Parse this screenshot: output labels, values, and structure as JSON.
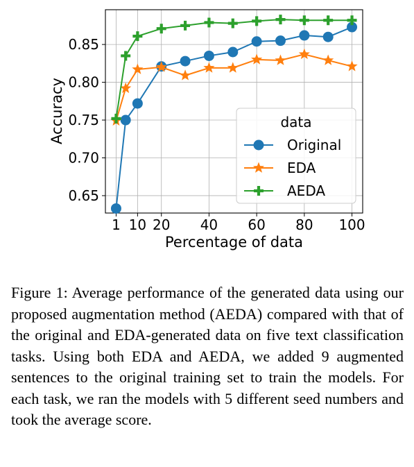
{
  "chart_data": {
    "type": "line",
    "title": "",
    "xlabel": "Percentage of data",
    "ylabel": "Accuracy",
    "xlim": [
      -3.5,
      104.5
    ],
    "ylim": [
      0.627,
      0.896
    ],
    "xticks": [
      1,
      10,
      20,
      40,
      60,
      80,
      100
    ],
    "xtick_labels": [
      "1",
      "10",
      "20",
      "40",
      "60",
      "80",
      "100"
    ],
    "yticks": [
      0.65,
      0.7,
      0.75,
      0.8,
      0.85
    ],
    "ytick_labels": [
      "0.65",
      "0.70",
      "0.75",
      "0.80",
      "0.85"
    ],
    "grid": true,
    "legend": {
      "title": "data",
      "position": "center-right"
    },
    "x": [
      1,
      5,
      10,
      20,
      30,
      40,
      50,
      60,
      70,
      80,
      90,
      100
    ],
    "series": [
      {
        "name": "Original",
        "color": "#1f77b4",
        "marker": "circle",
        "values": [
          0.633,
          0.75,
          0.772,
          0.821,
          0.828,
          0.835,
          0.84,
          0.854,
          0.855,
          0.862,
          0.86,
          0.873
        ]
      },
      {
        "name": "EDA",
        "color": "#ff7f0e",
        "marker": "star",
        "values": [
          0.749,
          0.792,
          0.817,
          0.82,
          0.809,
          0.819,
          0.819,
          0.83,
          0.829,
          0.837,
          0.829,
          0.821
        ]
      },
      {
        "name": "AEDA",
        "color": "#2ca02c",
        "marker": "plus",
        "values": [
          0.752,
          0.835,
          0.861,
          0.871,
          0.875,
          0.879,
          0.878,
          0.881,
          0.883,
          0.882,
          0.882,
          0.882
        ]
      }
    ]
  },
  "caption": "Figure 1: Average performance of the generated data using our proposed augmentation method (AEDA) compared with that of the original and EDA-generated data on five text classification tasks. Using both EDA and AEDA, we added 9 augmented sentences to the original training set to train the models. For each task, we ran the models with 5 different seed numbers and took the average score."
}
